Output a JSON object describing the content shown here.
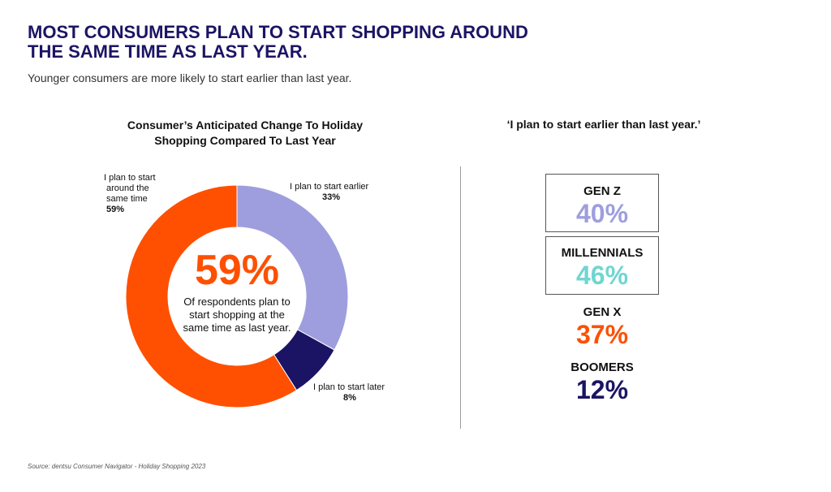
{
  "headline": [
    "MOST CONSUMERS PLAN TO START SHOPPING AROUND",
    "THE SAME TIME AS LAST YEAR."
  ],
  "subheadline": "Younger consumers are more likely to start earlier than last year.",
  "colors": {
    "earlier": "#9e9ede",
    "later": "#1b1464",
    "same": "#fe5000",
    "millennials": "#6fd6d0",
    "headline": "#1b1464"
  },
  "chart_data": {
    "type": "pie",
    "title": [
      "Consumer’s Anticipated Change To Holiday",
      "Shopping Compared To Last Year"
    ],
    "slices": [
      {
        "label": "I plan to start earlier",
        "value": 33,
        "value_label": "33%",
        "color": "#9e9ede"
      },
      {
        "label": "I plan to start later",
        "value": 8,
        "value_label": "8%",
        "color": "#1b1464"
      },
      {
        "label": [
          "I plan to start",
          "around the",
          "same time"
        ],
        "value": 59,
        "value_label": "59%",
        "color": "#fe5000"
      }
    ],
    "center": {
      "big": "59%",
      "text": "Of respondents plan to start shopping at the same time as last year."
    }
  },
  "generations": {
    "title": "‘I plan to start earlier than last year.’",
    "items": [
      {
        "name": "GEN Z",
        "value": "40%",
        "color": "#9e9ede"
      },
      {
        "name": "MILLENNIALS",
        "value": "46%",
        "color": "#6fd6d0"
      },
      {
        "name": "GEN X",
        "value": "37%",
        "color": "#fe5000"
      },
      {
        "name": "BOOMERS",
        "value": "12%",
        "color": "#1b1464"
      }
    ]
  },
  "source": "Source: dentsu Consumer Navigator - Holiday Shopping 2023"
}
